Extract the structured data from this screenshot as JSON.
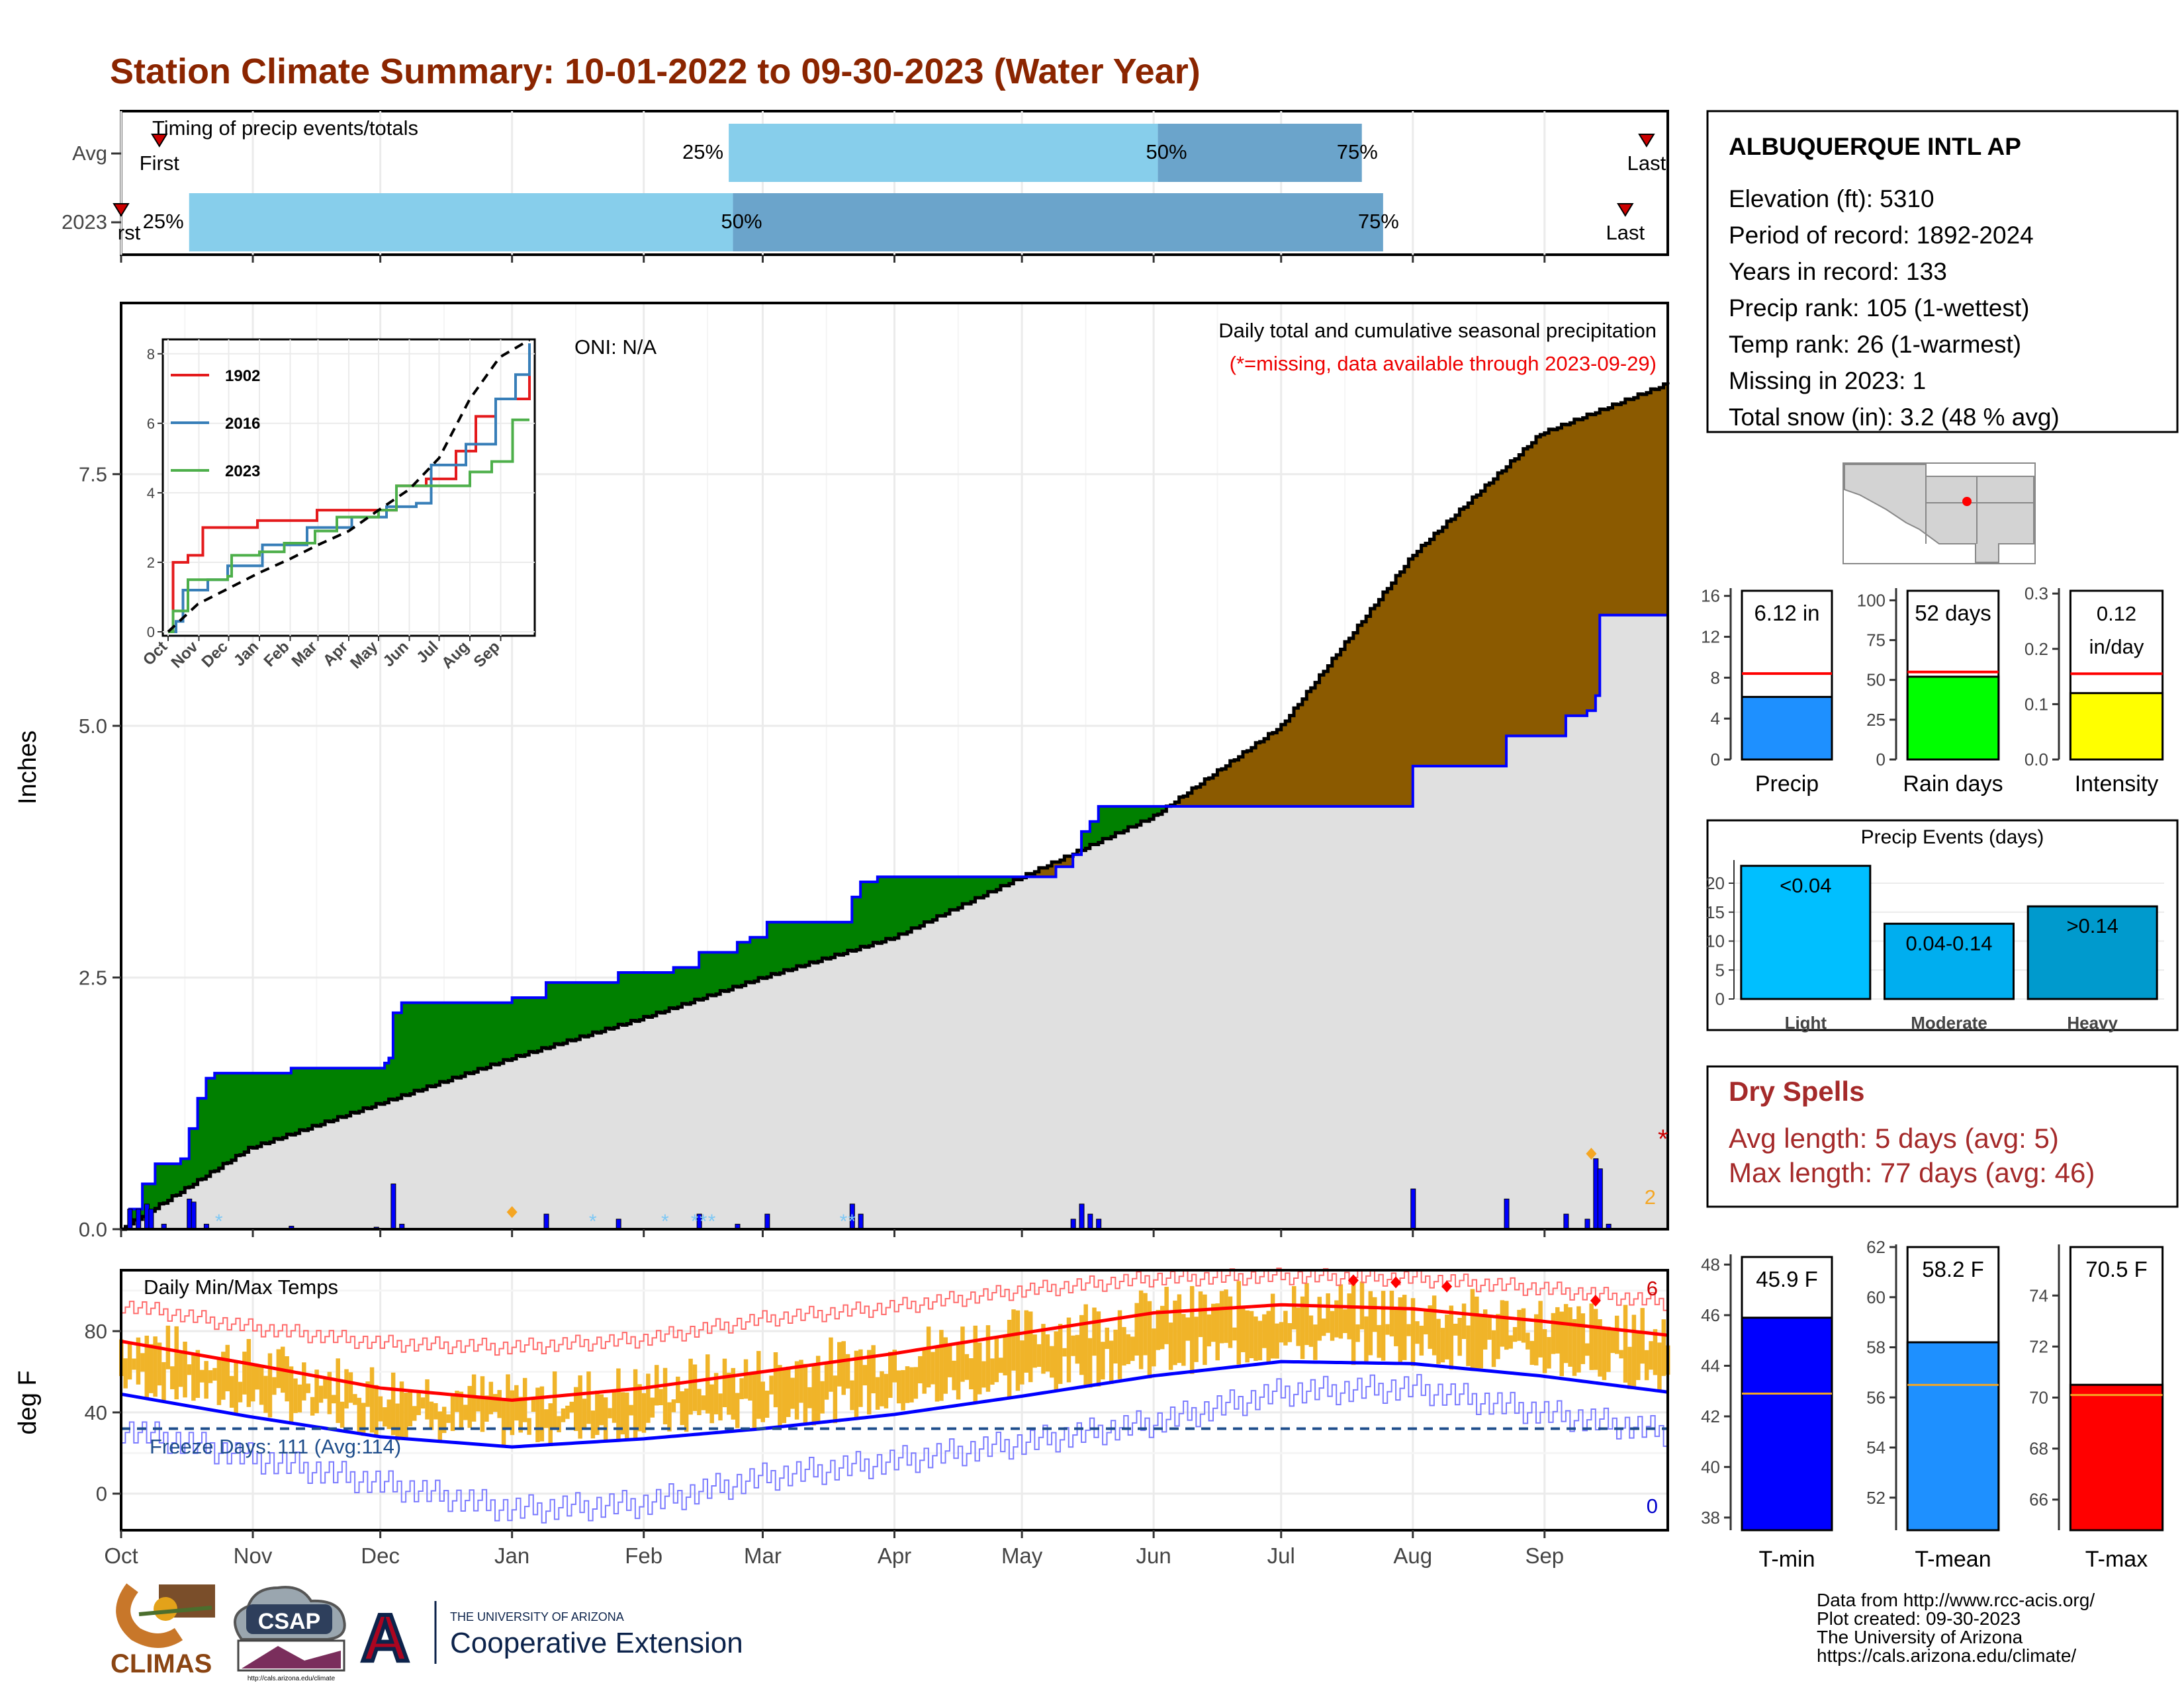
{
  "title": "Station Climate Summary: 10-01-2022 to 09-30-2023 (Water Year)",
  "colors": {
    "title": "#8B2500",
    "avg_fill": "#8B5A00",
    "deficit_fill": "#008000",
    "base_fill": "#E0E0E0",
    "obs_line": "#0000FF",
    "light_blue": "#87CEEB",
    "steel_blue": "#6BA4CB",
    "temp_bar": "#F0B429",
    "dry_spell": "#A52A2A"
  },
  "timing": {
    "label": "Timing of precip events/totals",
    "rows": [
      "Avg",
      "2023"
    ],
    "avg": {
      "first_label": "First",
      "last_label": "Last",
      "p25": "25%",
      "p50": "50%",
      "p75": "75%",
      "p25_date": "2023-02-21",
      "p50_date": "2023-06-02",
      "p75_date": "2023-07-20",
      "first_date": "2022-10-10",
      "last_date": "2023-09-25"
    },
    "y2023": {
      "first_label": "rst",
      "last_label": "Last",
      "p25": "25%",
      "p50": "50%",
      "p75": "75%",
      "p25_date": "2022-10-17",
      "p50_date": "2023-02-22",
      "p75_date": "2023-07-25",
      "first_date": "2022-10-01",
      "last_date": "2023-09-20"
    }
  },
  "main_chart": {
    "ylabel": "Inches",
    "y_ticks": [
      "0.0",
      "2.5",
      "5.0",
      "7.5"
    ],
    "ylim": [
      0,
      9.2
    ],
    "oni": "ONI: N/A",
    "subtitle": "Daily total and cumulative seasonal precipitation",
    "missing_note": "(*=missing, data available through 2023-09-29)",
    "missing_count": "2",
    "missing_marker": "*"
  },
  "chart_data": [
    {
      "type": "area",
      "name": "cumulative-precipitation",
      "x_start": "2022-10-01",
      "x_end": "2023-09-30",
      "avg_cumulative": [
        [
          0,
          0
        ],
        [
          30,
          0.8
        ],
        [
          61,
          1.25
        ],
        [
          92,
          1.7
        ],
        [
          123,
          2.1
        ],
        [
          151,
          2.5
        ],
        [
          182,
          2.9
        ],
        [
          212,
          3.5
        ],
        [
          243,
          4.1
        ],
        [
          273,
          5.0
        ],
        [
          304,
          6.7
        ],
        [
          334,
          7.9
        ],
        [
          364,
          8.4
        ]
      ],
      "obs_cumulative": [
        [
          0,
          0
        ],
        [
          2,
          0.2
        ],
        [
          5,
          0.45
        ],
        [
          8,
          0.65
        ],
        [
          14,
          0.7
        ],
        [
          16,
          1.0
        ],
        [
          18,
          1.3
        ],
        [
          20,
          1.5
        ],
        [
          22,
          1.55
        ],
        [
          40,
          1.6
        ],
        [
          60,
          1.6
        ],
        [
          62,
          1.65
        ],
        [
          63,
          1.7
        ],
        [
          64,
          2.15
        ],
        [
          66,
          2.25
        ],
        [
          92,
          2.3
        ],
        [
          100,
          2.45
        ],
        [
          110,
          2.45
        ],
        [
          117,
          2.55
        ],
        [
          130,
          2.6
        ],
        [
          136,
          2.75
        ],
        [
          145,
          2.85
        ],
        [
          148,
          2.9
        ],
        [
          152,
          3.05
        ],
        [
          170,
          3.05
        ],
        [
          172,
          3.3
        ],
        [
          174,
          3.45
        ],
        [
          178,
          3.5
        ],
        [
          200,
          3.5
        ],
        [
          212,
          3.5
        ],
        [
          220,
          3.6
        ],
        [
          224,
          3.72
        ],
        [
          226,
          3.95
        ],
        [
          228,
          4.05
        ],
        [
          230,
          4.2
        ],
        [
          280,
          4.2
        ],
        [
          300,
          4.2
        ],
        [
          304,
          4.6
        ],
        [
          325,
          4.6
        ],
        [
          326,
          4.9
        ],
        [
          338,
          4.9
        ],
        [
          340,
          5.1
        ],
        [
          345,
          5.15
        ],
        [
          347,
          5.3
        ],
        [
          348,
          6.1
        ],
        [
          364,
          6.1
        ]
      ],
      "daily_precip": [
        [
          2,
          0.2
        ],
        [
          4,
          0.2
        ],
        [
          6,
          0.25
        ],
        [
          7,
          0.2
        ],
        [
          10,
          0.05
        ],
        [
          16,
          0.3
        ],
        [
          17,
          0.27
        ],
        [
          20,
          0.05
        ],
        [
          40,
          0.03
        ],
        [
          60,
          0.02
        ],
        [
          64,
          0.45
        ],
        [
          66,
          0.05
        ],
        [
          100,
          0.15
        ],
        [
          117,
          0.1
        ],
        [
          136,
          0.15
        ],
        [
          145,
          0.05
        ],
        [
          152,
          0.15
        ],
        [
          172,
          0.25
        ],
        [
          174,
          0.15
        ],
        [
          224,
          0.1
        ],
        [
          226,
          0.25
        ],
        [
          228,
          0.15
        ],
        [
          230,
          0.1
        ],
        [
          304,
          0.4
        ],
        [
          326,
          0.3
        ],
        [
          340,
          0.15
        ],
        [
          345,
          0.1
        ],
        [
          347,
          0.7
        ],
        [
          348,
          0.6
        ],
        [
          350,
          0.05
        ]
      ],
      "snow_days": [
        23,
        111,
        128,
        135,
        137,
        139,
        170,
        172
      ],
      "flag_days": [
        [
          92,
          0.17
        ],
        [
          346,
          0.75
        ]
      ]
    },
    {
      "type": "line",
      "name": "inset-cumulative",
      "x_labels": [
        "Oct",
        "Nov",
        "Dec",
        "Jan",
        "Feb",
        "Mar",
        "Apr",
        "May",
        "Jun",
        "Jul",
        "Aug",
        "Sep"
      ],
      "y_ticks": [
        0,
        2,
        4,
        6,
        8
      ],
      "ylim": [
        0,
        8.3
      ],
      "series": [
        {
          "name": "1902",
          "color": "#E41A1C",
          "values": [
            [
              0,
              0
            ],
            [
              5,
              2
            ],
            [
              20,
              2.2
            ],
            [
              35,
              3
            ],
            [
              90,
              3.2
            ],
            [
              150,
              3.5
            ],
            [
              215,
              3.5
            ],
            [
              230,
              4.2
            ],
            [
              260,
              4.4
            ],
            [
              290,
              5.2
            ],
            [
              310,
              6.2
            ],
            [
              330,
              6.7
            ],
            [
              364,
              7.6
            ]
          ]
        },
        {
          "name": "2016",
          "color": "#377EB8",
          "values": [
            [
              0,
              0
            ],
            [
              8,
              0.3
            ],
            [
              15,
              1.2
            ],
            [
              40,
              1.5
            ],
            [
              60,
              1.9
            ],
            [
              95,
              2.5
            ],
            [
              140,
              3.0
            ],
            [
              185,
              3.3
            ],
            [
              220,
              3.6
            ],
            [
              250,
              3.7
            ],
            [
              265,
              4.8
            ],
            [
              300,
              5.4
            ],
            [
              330,
              6.7
            ],
            [
              350,
              7.4
            ],
            [
              364,
              8.3
            ]
          ]
        },
        {
          "name": "2023",
          "color": "#4DAF4A",
          "values": [
            [
              0,
              0
            ],
            [
              5,
              0.6
            ],
            [
              20,
              1.5
            ],
            [
              60,
              1.6
            ],
            [
              64,
              2.2
            ],
            [
              92,
              2.3
            ],
            [
              117,
              2.55
            ],
            [
              148,
              2.9
            ],
            [
              170,
              3.3
            ],
            [
              212,
              3.5
            ],
            [
              230,
              4.2
            ],
            [
              304,
              4.6
            ],
            [
              326,
              4.9
            ],
            [
              347,
              6.1
            ],
            [
              364,
              6.1
            ]
          ]
        },
        {
          "name": "avg",
          "color": "#000000",
          "values": [
            [
              0,
              0
            ],
            [
              30,
              0.8
            ],
            [
              61,
              1.25
            ],
            [
              92,
              1.7
            ],
            [
              123,
              2.1
            ],
            [
              151,
              2.5
            ],
            [
              182,
              2.9
            ],
            [
              212,
              3.5
            ],
            [
              243,
              4.1
            ],
            [
              273,
              5.0
            ],
            [
              304,
              6.7
            ],
            [
              334,
              7.9
            ],
            [
              364,
              8.4
            ]
          ]
        }
      ]
    },
    {
      "type": "bar",
      "name": "daily-temps",
      "ylabel": "deg F",
      "y_ticks": [
        0,
        40,
        80
      ],
      "ylim": [
        -18,
        110
      ],
      "label": "Daily Min/Max Temps",
      "freeze_label": "Freeze Days: 111 (Avg:114)",
      "freeze_line": 32,
      "record_count_high": "6",
      "record_count_low": "0",
      "avg_max": [
        [
          0,
          75
        ],
        [
          30,
          64
        ],
        [
          61,
          52
        ],
        [
          92,
          46
        ],
        [
          123,
          52
        ],
        [
          151,
          60
        ],
        [
          182,
          69
        ],
        [
          212,
          79
        ],
        [
          243,
          89
        ],
        [
          273,
          93
        ],
        [
          304,
          91
        ],
        [
          334,
          85
        ],
        [
          364,
          78
        ]
      ],
      "avg_min": [
        [
          0,
          49
        ],
        [
          30,
          38
        ],
        [
          61,
          28
        ],
        [
          92,
          23
        ],
        [
          123,
          27
        ],
        [
          151,
          32
        ],
        [
          182,
          39
        ],
        [
          212,
          48
        ],
        [
          243,
          58
        ],
        [
          273,
          65
        ],
        [
          304,
          64
        ],
        [
          334,
          58
        ],
        [
          364,
          50
        ]
      ],
      "record_max": [
        [
          0,
          93
        ],
        [
          30,
          82
        ],
        [
          61,
          74
        ],
        [
          92,
          72
        ],
        [
          123,
          76
        ],
        [
          151,
          86
        ],
        [
          182,
          92
        ],
        [
          212,
          100
        ],
        [
          243,
          106
        ],
        [
          273,
          107
        ],
        [
          304,
          106
        ],
        [
          334,
          101
        ],
        [
          364,
          94
        ]
      ],
      "record_min": [
        [
          0,
          32
        ],
        [
          30,
          18
        ],
        [
          61,
          5
        ],
        [
          92,
          -8
        ],
        [
          123,
          -5
        ],
        [
          151,
          8
        ],
        [
          182,
          16
        ],
        [
          212,
          25
        ],
        [
          243,
          35
        ],
        [
          273,
          50
        ],
        [
          304,
          52
        ],
        [
          334,
          40
        ],
        [
          364,
          30
        ]
      ],
      "record_high_days": [
        [
          290,
          105
        ],
        [
          300,
          104
        ],
        [
          312,
          102
        ],
        [
          347,
          95
        ]
      ]
    },
    {
      "type": "bar",
      "name": "precip-total",
      "label": "Precip",
      "value_label": "6.12 in",
      "value": 6.12,
      "avg": 8.4,
      "ylim": [
        0,
        16.5
      ],
      "y_ticks": [
        0,
        4,
        8,
        12,
        16
      ],
      "color": "#1E90FF"
    },
    {
      "type": "bar",
      "name": "rain-days",
      "label": "Rain days",
      "value_label": "52 days",
      "value": 52,
      "avg": 55,
      "ylim": [
        0,
        106
      ],
      "y_ticks": [
        0,
        25,
        50,
        75,
        100
      ],
      "color": "#00FF00"
    },
    {
      "type": "bar",
      "name": "intensity",
      "label": "Intensity",
      "value_label": "0.12 in/day",
      "value_label_lines": [
        "0.12",
        "in/day"
      ],
      "value": 0.12,
      "avg": 0.155,
      "ylim": [
        0,
        0.305
      ],
      "y_ticks": [
        "0.0",
        "0.1",
        "0.2",
        "0.3"
      ],
      "color": "#FFFF00"
    },
    {
      "type": "bar",
      "name": "precip-events",
      "title": "Precip Events (days)",
      "categories": [
        "Light",
        "Moderate",
        "Heavy"
      ],
      "bar_labels": [
        "<0.04",
        "0.04-0.14",
        ">0.14"
      ],
      "values": [
        23,
        13,
        16
      ],
      "colors": [
        "#00BFFF",
        "#00AEEF",
        "#009ACD"
      ],
      "ylim": [
        0,
        24
      ],
      "y_ticks": [
        0,
        5,
        10,
        15,
        20
      ]
    },
    {
      "type": "bar",
      "name": "t-min",
      "label": "T-min",
      "value_label": "45.9 F",
      "value": 45.9,
      "avg": 42.9,
      "ylim": [
        37.5,
        48.3
      ],
      "y_ticks": [
        38,
        40,
        42,
        44,
        46,
        48
      ],
      "color": "#0000FF"
    },
    {
      "type": "bar",
      "name": "t-mean",
      "label": "T-mean",
      "value_label": "58.2 F",
      "value": 58.2,
      "avg": 56.5,
      "ylim": [
        50.7,
        62
      ],
      "y_ticks": [
        52,
        54,
        56,
        58,
        60,
        62
      ],
      "color": "#1E90FF"
    },
    {
      "type": "bar",
      "name": "t-max",
      "label": "T-max",
      "value_label": "70.5 F",
      "value": 70.5,
      "avg": 70.1,
      "ylim": [
        64.8,
        75.9
      ],
      "y_ticks": [
        66,
        68,
        70,
        72,
        74
      ],
      "color": "#FF0000"
    }
  ],
  "x_axis": {
    "months": [
      "Oct",
      "Nov",
      "Dec",
      "Jan",
      "Feb",
      "Mar",
      "Apr",
      "May",
      "Jun",
      "Jul",
      "Aug",
      "Sep"
    ]
  },
  "station": {
    "name": "ALBUQUERQUE INTL AP",
    "lines": [
      "Elevation (ft): 5310",
      "Period of record: 1892-2024",
      "Years in record: 133",
      "Precip rank: 105 (1-wettest)",
      "Temp rank: 26 (1-warmest)",
      "Missing in 2023: 1",
      "Total snow (in): 3.2 (48 % avg)"
    ]
  },
  "dry_spells": {
    "title": "Dry Spells",
    "avg": "Avg length: 5 days (avg: 5)",
    "max": "Max length: 77 days (avg: 46)"
  },
  "footer": {
    "credits": [
      "Data from http://www.rcc-acis.org/",
      "Plot created: 09-30-2023",
      "The University of Arizona",
      "https://cals.arizona.edu/climate/"
    ],
    "logos": {
      "climas": "CLIMAS",
      "csap": "CSAP",
      "csap_url": "http://cals.arizona.edu/climate",
      "ua_small": "THE UNIVERSITY OF ARIZONA",
      "ua_big": "Cooperative Extension",
      "ua_letter": "A"
    }
  }
}
